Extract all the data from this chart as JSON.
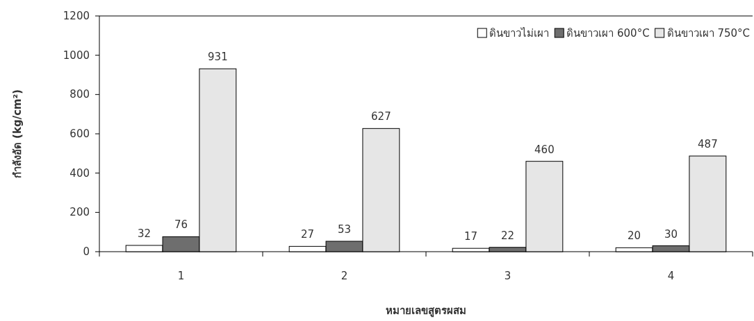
{
  "chart_data": {
    "type": "bar",
    "xlabel": "หมายเลขสูตรผสม",
    "ylabel": "กำลังอัด (kg/cm²)",
    "categories": [
      "1",
      "2",
      "3",
      "4"
    ],
    "series": [
      {
        "name": "ดินขาวไม่เผา",
        "color": "#ffffff",
        "values": [
          32,
          27,
          17,
          20
        ]
      },
      {
        "name": "ดินขาวเผา 600°C",
        "color": "#6e6e6e",
        "values": [
          76,
          53,
          22,
          30
        ]
      },
      {
        "name": "ดินขาวเผา 750°C",
        "color": "#e6e6e6",
        "values": [
          931,
          627,
          460,
          487
        ]
      }
    ],
    "ylim": [
      0,
      1200
    ],
    "yticks": [
      0,
      200,
      400,
      600,
      800,
      1000,
      1200
    ],
    "data_labels": true,
    "grid": false,
    "legend": "top right"
  }
}
